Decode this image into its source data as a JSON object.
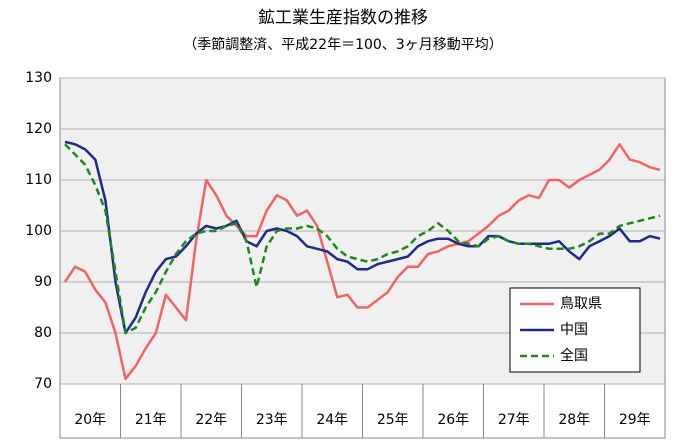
{
  "chart_data": {
    "type": "line",
    "title": "鉱工業生産指数の推移",
    "subtitle": "（季節調整済、平成22年＝100、3ヶ月移動平均）",
    "categories": [
      null,
      null,
      null,
      "20年",
      null,
      null,
      null,
      null,
      null,
      "21年",
      null,
      null,
      null,
      null,
      null,
      "22年",
      null,
      null,
      null,
      null,
      null,
      "23年",
      null,
      null,
      null,
      null,
      null,
      "24年",
      null,
      null,
      null,
      null,
      null,
      "25年",
      null,
      null,
      null,
      null,
      null,
      "26年",
      null,
      null,
      null,
      null,
      null,
      "27年",
      null,
      null,
      null,
      null,
      null,
      "28年",
      null,
      null,
      null,
      null,
      null,
      "29年",
      null,
      null
    ],
    "ylim": [
      70,
      130
    ],
    "yticks": [
      70,
      80,
      90,
      100,
      110,
      120,
      130
    ],
    "grid": true,
    "legend": "lower right",
    "series": [
      {
        "name": "鳥取県",
        "color": "#f06464",
        "dash": false,
        "values": [
          90,
          93,
          92,
          88.5,
          86,
          80,
          71,
          73.5,
          77,
          80,
          87.5,
          85,
          82.5,
          98,
          110,
          107,
          103,
          101,
          99,
          99,
          104,
          107,
          106,
          103,
          104,
          101,
          94,
          87,
          87.5,
          85,
          85,
          86.5,
          88,
          91,
          93,
          93,
          95.5,
          96,
          97,
          97.5,
          98,
          99.5,
          101,
          103,
          104,
          106,
          107,
          106.5,
          110,
          110,
          108.5,
          110,
          111,
          112,
          114,
          117,
          114,
          113.5,
          112.5,
          112
        ]
      },
      {
        "name": "中国",
        "color": "#1f2a8a",
        "dash": false,
        "values": [
          117.5,
          117,
          116,
          114,
          106,
          90,
          80,
          83,
          88,
          92,
          94.5,
          95,
          97,
          99.5,
          101,
          100.5,
          101,
          102,
          98,
          97,
          100,
          100.5,
          100,
          99,
          97,
          96.5,
          96,
          94.5,
          94,
          92.5,
          92.5,
          93.5,
          94,
          94.5,
          95,
          97,
          98,
          98.5,
          98.5,
          97.5,
          97,
          97,
          99,
          99,
          98,
          97.5,
          97.5,
          97.5,
          97.5,
          98,
          96,
          94.5,
          97,
          98,
          99,
          100.5,
          98,
          98,
          99,
          98.5
        ]
      },
      {
        "name": "全国",
        "color": "#1a8a1a",
        "dash": true,
        "values": [
          117,
          115,
          113,
          109,
          104,
          92,
          80,
          81,
          85,
          88,
          92,
          95.5,
          98,
          99.5,
          100,
          100,
          101,
          101.5,
          98,
          89,
          97,
          100,
          100.5,
          100.5,
          101,
          100.5,
          99,
          96.5,
          95,
          94.5,
          94,
          94.5,
          95.5,
          96,
          97,
          99,
          100,
          101.5,
          100,
          98,
          97.5,
          97,
          98.5,
          99,
          98,
          97.5,
          97.5,
          97,
          96.5,
          96.5,
          96.5,
          97,
          98,
          99.5,
          99.5,
          101,
          101.5,
          102,
          102.5,
          103
        ]
      }
    ]
  }
}
